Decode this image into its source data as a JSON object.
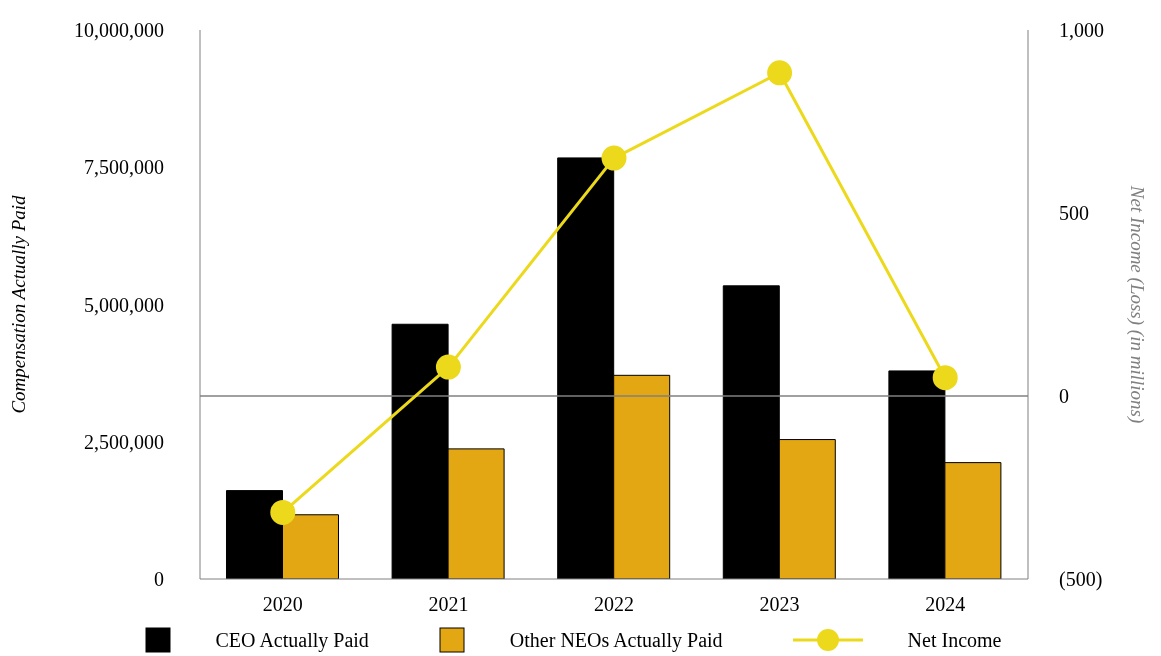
{
  "chart_data": {
    "type": "bar",
    "categories": [
      "2020",
      "2021",
      "2022",
      "2023",
      "2024"
    ],
    "ylabel": "Compensation Actually Paid",
    "y2label": "Net Income (Loss) (in millions)",
    "ylim": [
      0,
      10000000
    ],
    "yticks": [
      {
        "value": 0,
        "label": "0"
      },
      {
        "value": 2500000,
        "label": "2,500,000"
      },
      {
        "value": 5000000,
        "label": "5,000,000"
      },
      {
        "value": 7500000,
        "label": "7,500,000"
      },
      {
        "value": 10000000,
        "label": "10,000,000"
      }
    ],
    "y2lim": [
      -500,
      1000
    ],
    "y2ticks": [
      {
        "value": -500,
        "label": "(500)"
      },
      {
        "value": 0,
        "label": "0"
      },
      {
        "value": 500,
        "label": "500"
      },
      {
        "value": 1000,
        "label": "1,000"
      }
    ],
    "series": [
      {
        "name": "CEO Actually Paid",
        "color": "#000000",
        "values": [
          1610000,
          4640000,
          7670000,
          5340000,
          3790000
        ]
      },
      {
        "name": "Other NEOs Actually Paid",
        "color": "#e3a714",
        "values": [
          1170000,
          2370000,
          3710000,
          2540000,
          2120000
        ]
      },
      {
        "name": "Net Income",
        "type": "line",
        "axis": "y2",
        "color": "#ecd91c",
        "marker": "circle",
        "values": [
          -318,
          79,
          650,
          883,
          50
        ]
      }
    ],
    "ref_lines": [
      {
        "axis": "y2",
        "value": 0,
        "color": "#808080"
      }
    ],
    "grid": false,
    "legend": "bottom"
  }
}
